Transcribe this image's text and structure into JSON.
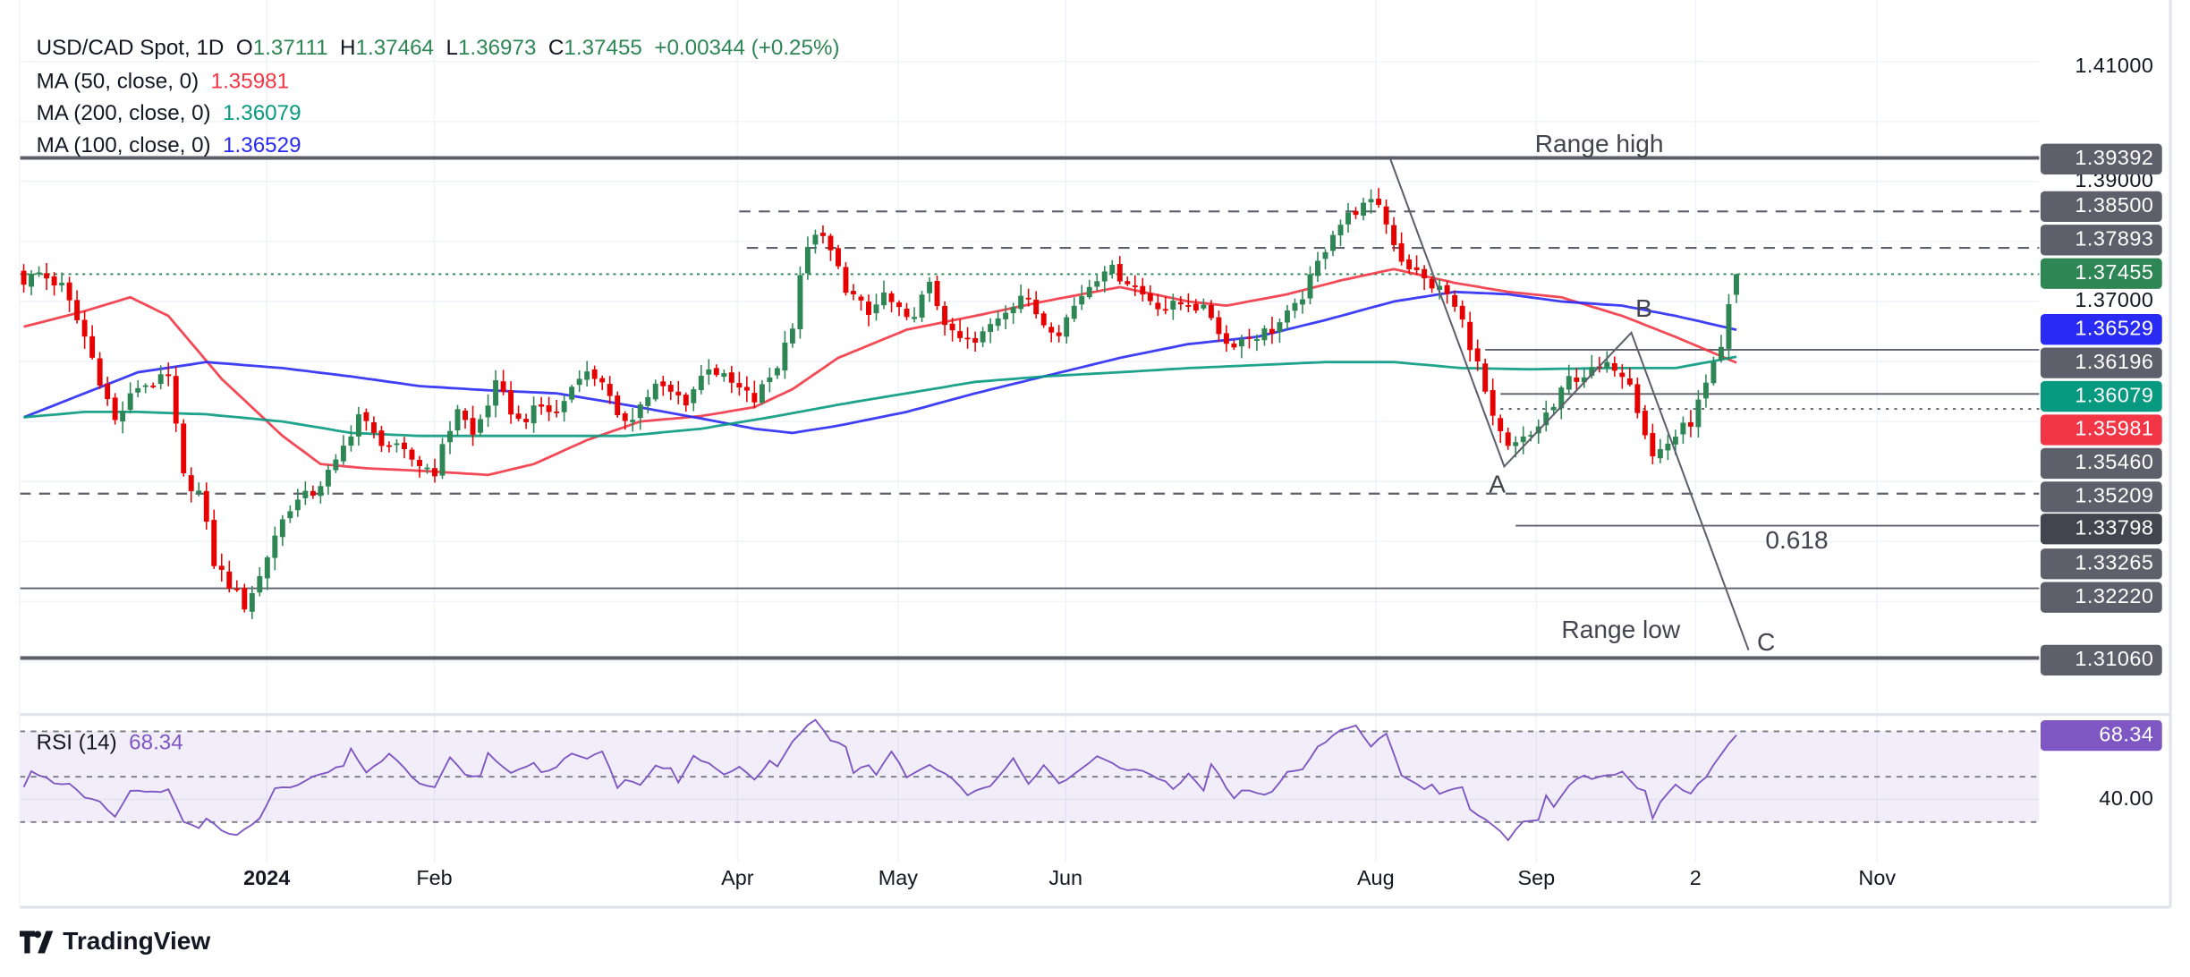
{
  "header": {
    "symbol": "USD/CAD Spot, 1D",
    "o_label": "O",
    "o": "1.37111",
    "h_label": "H",
    "h": "1.37464",
    "l_label": "L",
    "l": "1.36973",
    "c_label": "C",
    "c": "1.37455",
    "change": "+0.00344 (+0.25%)"
  },
  "indicators": [
    {
      "label": "MA (50, close, 0)",
      "value": "1.35981",
      "color": "#f23645"
    },
    {
      "label": "MA (200, close, 0)",
      "value": "1.36079",
      "color": "#089981"
    },
    {
      "label": "MA (100, close, 0)",
      "value": "1.36529",
      "color": "#2a2af5"
    }
  ],
  "price_axis": {
    "ticks": [
      "1.41000",
      "1.39000",
      "1.37000"
    ],
    "labels": [
      {
        "value": "1.39392",
        "color": "#5d606b"
      },
      {
        "value": "1.38500",
        "color": "#5d606b"
      },
      {
        "value": "1.37893",
        "color": "#5d606b"
      },
      {
        "value": "1.37455",
        "color": "#2e8655"
      },
      {
        "value": "1.36529",
        "color": "#2a2af5"
      },
      {
        "value": "1.36196",
        "color": "#5d606b"
      },
      {
        "value": "1.36079",
        "color": "#089981"
      },
      {
        "value": "1.35981",
        "color": "#f23645"
      },
      {
        "value": "1.35460",
        "color": "#5d606b"
      },
      {
        "value": "1.35209",
        "color": "#5d606b"
      },
      {
        "value": "1.33798",
        "color": "#43444d"
      },
      {
        "value": "1.33265",
        "color": "#5d606b"
      },
      {
        "value": "1.32220",
        "color": "#5d606b"
      },
      {
        "value": "1.31060",
        "color": "#5d606b"
      }
    ]
  },
  "annotations": {
    "range_high": "Range high",
    "range_low": "Range low",
    "fib": "0.618",
    "a": "A",
    "b": "B",
    "c": "C"
  },
  "rsi": {
    "label": "RSI (14)",
    "value": "68.34",
    "axis_label": "40.00",
    "color": "#7e57c2"
  },
  "time_axis": [
    "2024",
    "Feb",
    "Apr",
    "May",
    "Jun",
    "Aug",
    "Sep",
    "2",
    "Nov"
  ],
  "branding": "TradingView",
  "chart_data": {
    "type": "candlestick",
    "title": "USD/CAD Spot, 1D",
    "sessions": 226,
    "y_range": [
      1.308,
      1.415
    ],
    "colors": {
      "up": "#2e8655",
      "down": "#e60000"
    },
    "last_candle": {
      "open": 1.37111,
      "high": 1.37464,
      "low": 1.36973,
      "close": 1.37455
    },
    "close_keypoints": [
      [
        0,
        1.3735
      ],
      [
        2,
        1.3747
      ],
      [
        5,
        1.3724
      ],
      [
        8,
        1.3641
      ],
      [
        12,
        1.35
      ],
      [
        15,
        1.3559
      ],
      [
        19,
        1.3571
      ],
      [
        21,
        1.3406
      ],
      [
        23,
        1.3382
      ],
      [
        25,
        1.3265
      ],
      [
        27,
        1.3229
      ],
      [
        29,
        1.3194
      ],
      [
        31,
        1.3241
      ],
      [
        33,
        1.3312
      ],
      [
        35,
        1.3359
      ],
      [
        38,
        1.3382
      ],
      [
        41,
        1.3429
      ],
      [
        44,
        1.3512
      ],
      [
        46,
        1.3476
      ],
      [
        49,
        1.3453
      ],
      [
        52,
        1.3429
      ],
      [
        54,
        1.3418
      ],
      [
        57,
        1.3524
      ],
      [
        59,
        1.3476
      ],
      [
        62,
        1.3559
      ],
      [
        65,
        1.35
      ],
      [
        68,
        1.3524
      ],
      [
        70,
        1.3512
      ],
      [
        73,
        1.3582
      ],
      [
        76,
        1.3571
      ],
      [
        78,
        1.35
      ],
      [
        80,
        1.3512
      ],
      [
        83,
        1.3559
      ],
      [
        87,
        1.3535
      ],
      [
        90,
        1.3594
      ],
      [
        92,
        1.3571
      ],
      [
        96,
        1.3535
      ],
      [
        99,
        1.3594
      ],
      [
        101,
        1.3665
      ],
      [
        102,
        1.3747
      ],
      [
        104,
        1.3818
      ],
      [
        106,
        1.3782
      ],
      [
        108,
        1.3724
      ],
      [
        111,
        1.3676
      ],
      [
        113,
        1.3712
      ],
      [
        116,
        1.3665
      ],
      [
        119,
        1.3724
      ],
      [
        122,
        1.3641
      ],
      [
        125,
        1.3629
      ],
      [
        128,
        1.3676
      ],
      [
        131,
        1.3712
      ],
      [
        134,
        1.3665
      ],
      [
        136,
        1.3653
      ],
      [
        139,
        1.3712
      ],
      [
        142,
        1.3759
      ],
      [
        145,
        1.3735
      ],
      [
        147,
        1.3712
      ],
      [
        150,
        1.3688
      ],
      [
        153,
        1.37
      ],
      [
        156,
        1.3676
      ],
      [
        158,
        1.3629
      ],
      [
        161,
        1.3641
      ],
      [
        164,
        1.3653
      ],
      [
        167,
        1.3688
      ],
      [
        169,
        1.3735
      ],
      [
        172,
        1.3818
      ],
      [
        175,
        1.3853
      ],
      [
        178,
        1.3865
      ],
      [
        179,
        1.3829
      ],
      [
        181,
        1.3771
      ],
      [
        184,
        1.3735
      ],
      [
        187,
        1.3712
      ],
      [
        189,
        1.3665
      ],
      [
        191,
        1.3594
      ],
      [
        193,
        1.35
      ],
      [
        195,
        1.3453
      ],
      [
        198,
        1.3476
      ],
      [
        200,
        1.3512
      ],
      [
        201,
        1.3524
      ],
      [
        203,
        1.3571
      ],
      [
        206,
        1.3582
      ],
      [
        209,
        1.3594
      ],
      [
        211,
        1.3571
      ],
      [
        212,
        1.3524
      ],
      [
        214,
        1.3441
      ],
      [
        216,
        1.3465
      ],
      [
        219,
        1.35
      ],
      [
        221,
        1.3559
      ],
      [
        223,
        1.3618
      ],
      [
        224,
        1.3688
      ],
      [
        225,
        1.37455
      ]
    ],
    "ma_series": [
      {
        "name": "MA 50",
        "color": "#f23645",
        "points": [
          [
            0,
            1.3658
          ],
          [
            8,
            1.3684
          ],
          [
            14,
            1.3707
          ],
          [
            19,
            1.3676
          ],
          [
            26,
            1.3571
          ],
          [
            34,
            1.3476
          ],
          [
            39,
            1.3429
          ],
          [
            45,
            1.3422
          ],
          [
            52,
            1.3418
          ],
          [
            61,
            1.3411
          ],
          [
            67,
            1.3429
          ],
          [
            74,
            1.3469
          ],
          [
            81,
            1.35
          ],
          [
            89,
            1.3509
          ],
          [
            96,
            1.3524
          ],
          [
            101,
            1.3554
          ],
          [
            107,
            1.3606
          ],
          [
            116,
            1.3653
          ],
          [
            125,
            1.3676
          ],
          [
            134,
            1.37
          ],
          [
            144,
            1.3724
          ],
          [
            153,
            1.37
          ],
          [
            158,
            1.3693
          ],
          [
            166,
            1.3712
          ],
          [
            173,
            1.3735
          ],
          [
            180,
            1.3754
          ],
          [
            188,
            1.3731
          ],
          [
            195,
            1.3716
          ],
          [
            202,
            1.3707
          ],
          [
            210,
            1.3676
          ],
          [
            217,
            1.3641
          ],
          [
            225,
            1.35981
          ]
        ]
      },
      {
        "name": "MA 100",
        "color": "#2a2af5",
        "points": [
          [
            0,
            1.3507
          ],
          [
            8,
            1.3547
          ],
          [
            15,
            1.3582
          ],
          [
            24,
            1.3599
          ],
          [
            34,
            1.3589
          ],
          [
            43,
            1.3575
          ],
          [
            52,
            1.3559
          ],
          [
            61,
            1.3552
          ],
          [
            70,
            1.3547
          ],
          [
            79,
            1.3528
          ],
          [
            89,
            1.3505
          ],
          [
            96,
            1.3488
          ],
          [
            101,
            1.3481
          ],
          [
            107,
            1.3493
          ],
          [
            116,
            1.3516
          ],
          [
            125,
            1.3547
          ],
          [
            134,
            1.3575
          ],
          [
            144,
            1.3606
          ],
          [
            153,
            1.3629
          ],
          [
            162,
            1.3641
          ],
          [
            171,
            1.3669
          ],
          [
            180,
            1.37
          ],
          [
            188,
            1.3716
          ],
          [
            195,
            1.3712
          ],
          [
            202,
            1.37
          ],
          [
            210,
            1.3693
          ],
          [
            217,
            1.3676
          ],
          [
            225,
            1.36529
          ]
        ]
      },
      {
        "name": "MA 200",
        "color": "#089981",
        "points": [
          [
            0,
            1.3507
          ],
          [
            8,
            1.3516
          ],
          [
            15,
            1.3516
          ],
          [
            24,
            1.3512
          ],
          [
            34,
            1.35
          ],
          [
            43,
            1.3481
          ],
          [
            52,
            1.3476
          ],
          [
            61,
            1.3476
          ],
          [
            70,
            1.3476
          ],
          [
            79,
            1.3476
          ],
          [
            89,
            1.3488
          ],
          [
            98,
            1.3507
          ],
          [
            107,
            1.3528
          ],
          [
            116,
            1.3547
          ],
          [
            125,
            1.3566
          ],
          [
            134,
            1.3575
          ],
          [
            144,
            1.3582
          ],
          [
            153,
            1.3589
          ],
          [
            162,
            1.3594
          ],
          [
            171,
            1.3599
          ],
          [
            180,
            1.3599
          ],
          [
            189,
            1.3589
          ],
          [
            198,
            1.3587
          ],
          [
            208,
            1.3589
          ],
          [
            217,
            1.3589
          ],
          [
            225,
            1.36079
          ]
        ]
      }
    ],
    "horizontal_levels": [
      {
        "price": 1.39392,
        "style": "solid-thick",
        "from": 0
      },
      {
        "price": 1.385,
        "style": "dashed",
        "from": 94
      },
      {
        "price": 1.37893,
        "style": "dashed",
        "from": 95
      },
      {
        "price": 1.37455,
        "style": "dotted-green",
        "from": 0
      },
      {
        "price": 1.36196,
        "style": "solid",
        "from": 192
      },
      {
        "price": 1.3546,
        "style": "solid",
        "from": 194
      },
      {
        "price": 1.35209,
        "style": "dotted",
        "from": 194
      },
      {
        "price": 1.33798,
        "style": "dashed",
        "from": 0
      },
      {
        "price": 1.33265,
        "style": "solid",
        "from": 196
      },
      {
        "price": 1.3222,
        "style": "solid",
        "from": 0
      },
      {
        "price": 1.3106,
        "style": "solid-thick",
        "from": 0
      }
    ],
    "abc_pattern": [
      [
        179.4,
        1.3942
      ],
      [
        194.5,
        1.3425
      ],
      [
        211.2,
        1.3648
      ],
      [
        226.6,
        1.3119
      ]
    ],
    "rsi_series": [
      [
        0,
        46.0
      ],
      [
        1,
        52.8
      ],
      [
        4,
        47.4
      ],
      [
        6,
        46.7
      ],
      [
        8,
        40.6
      ],
      [
        10,
        38.6
      ],
      [
        12,
        31.9
      ],
      [
        14,
        44.0
      ],
      [
        16,
        43.3
      ],
      [
        19,
        44.0
      ],
      [
        21,
        29.9
      ],
      [
        23,
        27.2
      ],
      [
        24,
        31.2
      ],
      [
        26,
        26.5
      ],
      [
        28,
        23.8
      ],
      [
        31,
        31.2
      ],
      [
        33,
        44.7
      ],
      [
        36,
        46.0
      ],
      [
        39,
        51.4
      ],
      [
        42,
        54.8
      ],
      [
        43,
        62.9
      ],
      [
        45,
        51.4
      ],
      [
        48,
        60.2
      ],
      [
        52,
        46.7
      ],
      [
        54,
        45.5
      ],
      [
        56,
        58.8
      ],
      [
        58,
        50.7
      ],
      [
        60,
        50.7
      ],
      [
        61,
        60.8
      ],
      [
        64,
        51.4
      ],
      [
        67,
        55.5
      ],
      [
        68,
        51.4
      ],
      [
        70,
        54.1
      ],
      [
        72,
        60.8
      ],
      [
        74,
        58.1
      ],
      [
        76,
        61.5
      ],
      [
        78,
        44.7
      ],
      [
        79,
        48.0
      ],
      [
        81,
        46.7
      ],
      [
        83,
        54.8
      ],
      [
        85,
        53.2
      ],
      [
        86,
        48.0
      ],
      [
        88,
        58.8
      ],
      [
        90,
        56.1
      ],
      [
        92,
        50.7
      ],
      [
        94,
        54.8
      ],
      [
        96,
        48.7
      ],
      [
        98,
        56.8
      ],
      [
        99,
        54.1
      ],
      [
        101,
        65.6
      ],
      [
        103,
        72.3
      ],
      [
        104,
        75.4
      ],
      [
        106,
        66.2
      ],
      [
        108,
        63.5
      ],
      [
        109,
        52.1
      ],
      [
        111,
        55.5
      ],
      [
        112,
        50.7
      ],
      [
        114,
        61.5
      ],
      [
        116,
        50.1
      ],
      [
        119,
        55.5
      ],
      [
        122,
        49.4
      ],
      [
        124,
        42.0
      ],
      [
        127,
        46.0
      ],
      [
        130,
        58.1
      ],
      [
        132,
        46.7
      ],
      [
        134,
        55.5
      ],
      [
        136,
        46.7
      ],
      [
        139,
        53.4
      ],
      [
        141,
        59.5
      ],
      [
        144,
        54.1
      ],
      [
        147,
        52.1
      ],
      [
        150,
        47.4
      ],
      [
        151,
        44.0
      ],
      [
        153,
        51.4
      ],
      [
        155,
        44.0
      ],
      [
        156,
        56.1
      ],
      [
        159,
        40.0
      ],
      [
        160,
        44.0
      ],
      [
        163,
        42.0
      ],
      [
        164,
        44.0
      ],
      [
        166,
        52.1
      ],
      [
        168,
        53.4
      ],
      [
        170,
        62.9
      ],
      [
        173,
        70.3
      ],
      [
        175,
        73.0
      ],
      [
        177,
        62.9
      ],
      [
        179,
        69.6
      ],
      [
        181,
        50.7
      ],
      [
        184,
        44.7
      ],
      [
        185,
        46.7
      ],
      [
        186,
        42.0
      ],
      [
        189,
        46.0
      ],
      [
        190,
        35.2
      ],
      [
        192,
        31.2
      ],
      [
        194,
        26.5
      ],
      [
        195,
        22.5
      ],
      [
        197,
        30.5
      ],
      [
        199,
        31.2
      ],
      [
        200,
        41.3
      ],
      [
        201,
        36.6
      ],
      [
        203,
        46.0
      ],
      [
        205,
        50.7
      ],
      [
        206,
        49.4
      ],
      [
        210,
        51.7
      ],
      [
        212,
        44.7
      ],
      [
        213,
        43.3
      ],
      [
        214,
        31.5
      ],
      [
        215,
        39.3
      ],
      [
        217,
        46.0
      ],
      [
        219,
        42.7
      ],
      [
        221,
        50.1
      ],
      [
        223,
        60.2
      ],
      [
        225,
        68.34
      ]
    ],
    "rsi_levels": [
      70,
      50,
      30
    ],
    "rsi_range": [
      18,
      78
    ]
  }
}
